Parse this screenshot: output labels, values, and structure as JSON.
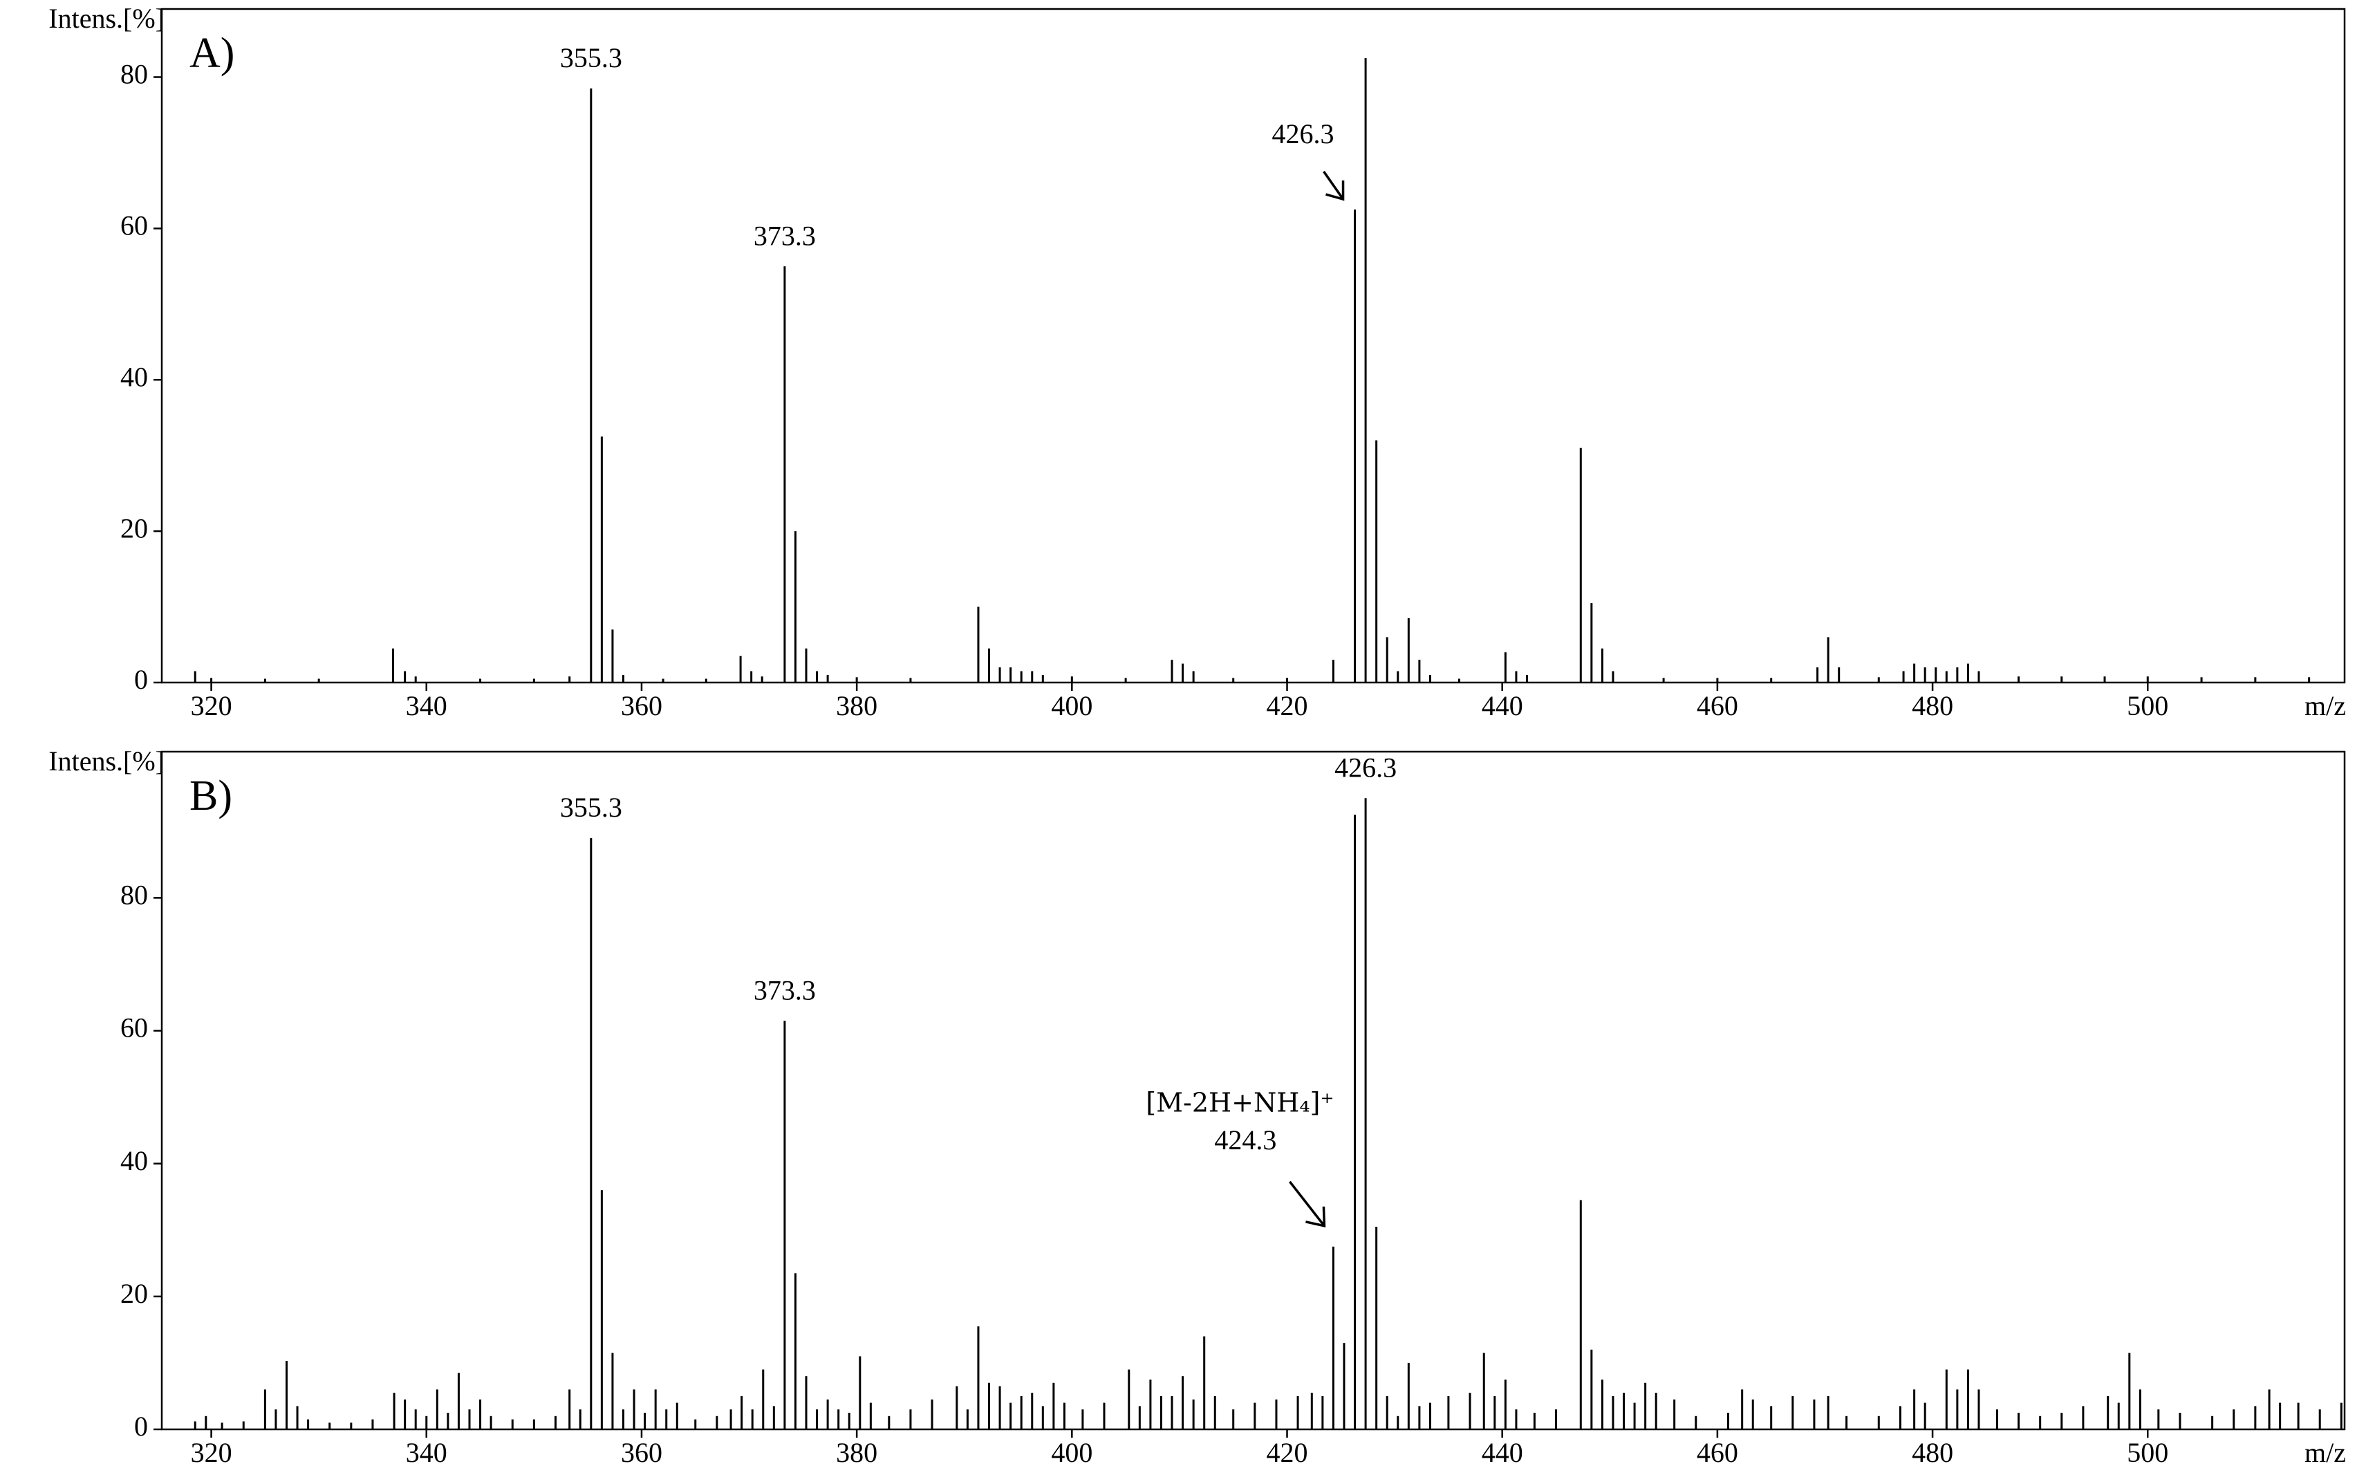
{
  "chart_data": [
    {
      "type": "bar",
      "panel": "A)",
      "ylabel": "Intens.[%]",
      "xlabel": "m/z",
      "color": "#000000",
      "xlim": [
        315.4,
        518.3
      ],
      "ylim": [
        0,
        89
      ],
      "xticks": [
        320,
        340,
        360,
        380,
        400,
        420,
        440,
        460,
        480,
        500
      ],
      "yticks": [
        0,
        20,
        40,
        60,
        80
      ],
      "x": [
        318.5,
        320,
        325,
        330,
        336.9,
        338,
        339,
        345,
        350,
        353.3,
        355.3,
        356.3,
        357.3,
        358.3,
        362,
        366,
        369.2,
        370.2,
        371.2,
        373.3,
        374.3,
        375.3,
        376.3,
        377.3,
        380,
        385,
        391.3,
        392.3,
        393.3,
        394.3,
        395.3,
        396.3,
        397.3,
        400,
        405,
        409.3,
        410.3,
        411.3,
        415,
        420,
        424.3,
        426.3,
        427.3,
        428.3,
        429.3,
        430.3,
        431.3,
        432.3,
        433.3,
        436,
        440.3,
        441.3,
        442.3,
        447.3,
        448.3,
        449.3,
        450.3,
        455,
        460,
        465,
        469.3,
        470.3,
        471.3,
        475,
        477.3,
        478.3,
        479.3,
        480.3,
        481.3,
        482.3,
        483.3,
        484.3,
        488,
        492,
        496,
        500,
        505,
        510,
        515
      ],
      "values": [
        1.5,
        0.6,
        0.5,
        0.5,
        4.5,
        1.5,
        0.8,
        0.5,
        0.5,
        0.8,
        78.5,
        32.5,
        7,
        1,
        0.5,
        0.5,
        3.5,
        1.5,
        0.8,
        55,
        20,
        4.5,
        1.5,
        1,
        0.7,
        0.6,
        10,
        4.5,
        2,
        2,
        1.5,
        1.5,
        1,
        0.8,
        0.6,
        3,
        2.5,
        1.5,
        0.6,
        0.6,
        3,
        62.5,
        82.5,
        32,
        6,
        1.5,
        8.5,
        3,
        1,
        0.5,
        4,
        1.5,
        1,
        31,
        10.5,
        4.5,
        1.5,
        0.6,
        0.6,
        0.6,
        2,
        6,
        2,
        0.7,
        1.5,
        2.5,
        2,
        2,
        1.5,
        2,
        2.5,
        1.5,
        0.8,
        0.8,
        0.8,
        0.8,
        0.7,
        0.7,
        0.7
      ],
      "annotations": [
        {
          "text": "355.3",
          "x": 355.3
        },
        {
          "text": "373.3",
          "x": 373.3
        },
        {
          "text": "426.3",
          "x": 426.3,
          "arrow": true
        }
      ]
    },
    {
      "type": "bar",
      "panel": "B)",
      "ylabel": "Intens.[%]",
      "xlabel": "m/z",
      "color": "#000000",
      "xlim": [
        315.4,
        518.3
      ],
      "ylim": [
        0,
        102
      ],
      "xticks": [
        320,
        340,
        360,
        380,
        400,
        420,
        440,
        460,
        480,
        500
      ],
      "yticks": [
        0,
        20,
        40,
        60,
        80
      ],
      "x": [
        318.5,
        319.5,
        321,
        323,
        325,
        326,
        327,
        328,
        329,
        331,
        333,
        335,
        337,
        338,
        339,
        340,
        341,
        342,
        343,
        344,
        345,
        346,
        348,
        350,
        352,
        353.3,
        354.3,
        355.3,
        356.3,
        357.3,
        358.3,
        359.3,
        360.3,
        361.3,
        362.3,
        363.3,
        365,
        367,
        368.3,
        369.3,
        370.3,
        371.3,
        372.3,
        373.3,
        374.3,
        375.3,
        376.3,
        377.3,
        378.3,
        379.3,
        380.3,
        381.3,
        383,
        385,
        387,
        389.3,
        390.3,
        391.3,
        392.3,
        393.3,
        394.3,
        395.3,
        396.3,
        397.3,
        398.3,
        399.3,
        401,
        403,
        405.3,
        406.3,
        407.3,
        408.3,
        409.3,
        410.3,
        411.3,
        412.3,
        413.3,
        415,
        417,
        419,
        421,
        422.3,
        423.3,
        424.3,
        425.3,
        426.3,
        427.3,
        428.3,
        429.3,
        430.3,
        431.3,
        432.3,
        433.3,
        435,
        437,
        438.3,
        439.3,
        440.3,
        441.3,
        443,
        445,
        447.3,
        448.3,
        449.3,
        450.3,
        451.3,
        452.3,
        453.3,
        454.3,
        456,
        458,
        461,
        462.3,
        463.3,
        465,
        467,
        469,
        470.3,
        472,
        475,
        477,
        478.3,
        479.3,
        481.3,
        482.3,
        483.3,
        484.3,
        486,
        488,
        490,
        492,
        494,
        496.3,
        497.3,
        498.3,
        499.3,
        501,
        503,
        506,
        508,
        510,
        511.3,
        512.3,
        514,
        516,
        518
      ],
      "values": [
        1.2,
        2,
        1,
        1.2,
        6,
        3,
        10.3,
        3.5,
        1.5,
        1,
        1,
        1.5,
        5.5,
        4.5,
        3,
        2,
        6,
        2.5,
        8.5,
        3,
        4.5,
        2,
        1.5,
        1.5,
        2,
        6,
        3,
        89,
        36,
        11.5,
        3,
        6,
        2.5,
        6,
        3,
        4,
        1.5,
        2,
        3,
        5,
        3,
        9,
        3.5,
        61.5,
        23.5,
        8,
        3,
        4.5,
        3,
        2.5,
        11,
        4,
        2,
        3,
        4.5,
        6.5,
        3,
        15.5,
        7,
        6.5,
        4,
        5,
        5.5,
        3.5,
        7,
        4,
        3,
        4,
        9,
        3.5,
        7.5,
        5,
        5,
        8,
        4.5,
        14,
        5,
        3,
        4,
        4.5,
        5,
        5.5,
        5,
        27.5,
        13,
        92.5,
        95,
        30.5,
        5,
        2,
        10,
        3.5,
        4,
        5,
        5.5,
        11.5,
        5,
        7.5,
        3,
        2.5,
        3,
        34.5,
        12,
        7.5,
        5,
        5.5,
        4,
        7,
        5.5,
        4.5,
        2,
        2.5,
        6,
        4.5,
        3.5,
        5,
        4.5,
        5,
        2,
        2,
        3.5,
        6,
        4,
        9,
        6,
        9,
        6,
        3,
        2.5,
        2,
        2.5,
        3.5,
        5,
        4,
        11.5,
        6,
        3,
        2.5,
        2,
        3,
        3.5,
        6,
        4,
        4,
        3,
        4
      ],
      "annotations": [
        {
          "text": "355.3",
          "x": 355.3
        },
        {
          "text": "373.3",
          "x": 373.3
        },
        {
          "text": "426.3",
          "x": 427.3
        },
        {
          "note": "[M-2H+NH₄]⁺",
          "text": "424.3",
          "x": 424.3,
          "arrow": true
        }
      ]
    }
  ]
}
